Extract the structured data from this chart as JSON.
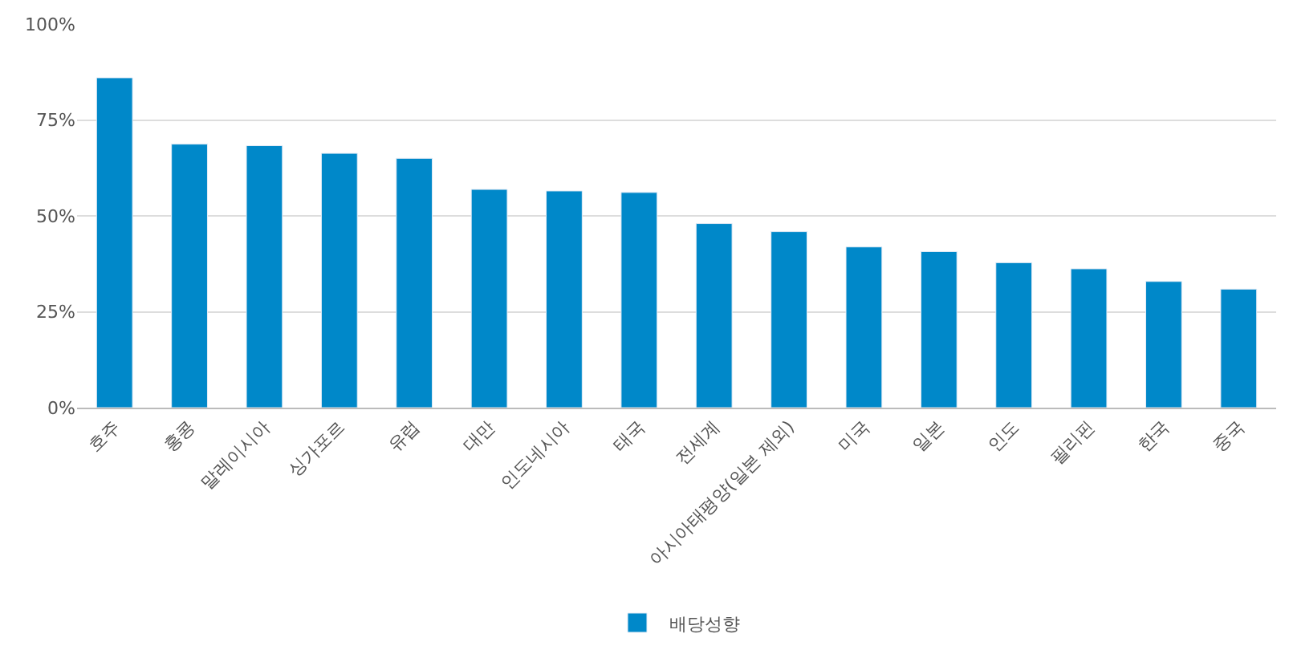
{
  "chart_data": {
    "type": "bar",
    "categories": [
      "호주",
      "홍콩",
      "말레이시아",
      "싱가포르",
      "유럽",
      "대만",
      "인도네시아",
      "태국",
      "전세계",
      "아시아태평양(일본 제외)",
      "미국",
      "일본",
      "인도",
      "필리핀",
      "한국",
      "중국"
    ],
    "series": [
      {
        "name": "배당성향",
        "color": "#0088c9",
        "values": [
          86,
          68.7,
          68.3,
          66.3,
          65,
          56.9,
          56.5,
          56.1,
          48,
          45.9,
          41.9,
          40.7,
          37.8,
          36.2,
          32.9,
          30.9
        ]
      }
    ],
    "ylim": [
      0,
      100
    ],
    "yticks": [
      {
        "value": 0,
        "label": "0%"
      },
      {
        "value": 25,
        "label": "25%"
      },
      {
        "value": 50,
        "label": "50%"
      },
      {
        "value": 75,
        "label": "75%"
      },
      {
        "value": 100,
        "label": "100%"
      }
    ],
    "grid": "y",
    "legend": "bottom"
  }
}
